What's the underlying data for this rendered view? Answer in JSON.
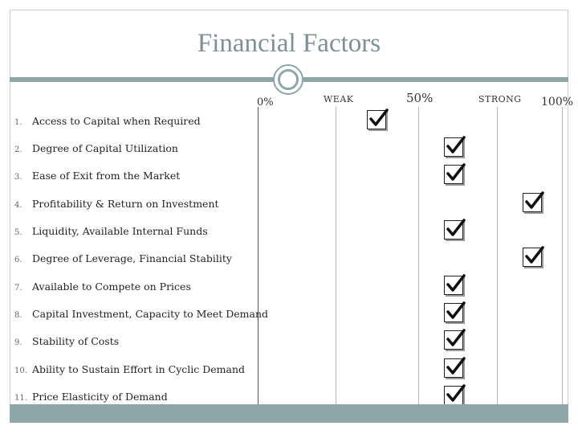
{
  "slide": {
    "title": "Financial Factors"
  },
  "scale": {
    "zero": "0%",
    "weak": "WEAK",
    "mid": "50%",
    "strong": "STRONG",
    "full": "100%"
  },
  "factors": [
    {
      "num": "1.",
      "label": "Access to Capital when Required",
      "rating_column": 1
    },
    {
      "num": "2.",
      "label": "Degree of Capital Utilization",
      "rating_column": 2
    },
    {
      "num": "3.",
      "label": "Ease of Exit from the Market",
      "rating_column": 2
    },
    {
      "num": "4.",
      "label": "Profitability & Return on Investment",
      "rating_column": 3
    },
    {
      "num": "5.",
      "label": "Liquidity, Available Internal Funds",
      "rating_column": 2
    },
    {
      "num": "6.",
      "label": "Degree of Leverage, Financial Stability",
      "rating_column": 3
    },
    {
      "num": "7.",
      "label": "Available to Compete on Prices",
      "rating_column": 2
    },
    {
      "num": "8.",
      "label": "Capital Investment, Capacity to Meet Demand",
      "rating_column": 2
    },
    {
      "num": "9.",
      "label": "Stability of Costs",
      "rating_column": 2
    },
    {
      "num": "10.",
      "label": "Ability to Sustain Effort in Cyclic Demand",
      "rating_column": 2
    },
    {
      "num": "11.",
      "label": "Price Elasticity of Demand",
      "rating_column": 2
    }
  ],
  "icons": {
    "check": "checkmark-box-icon"
  }
}
